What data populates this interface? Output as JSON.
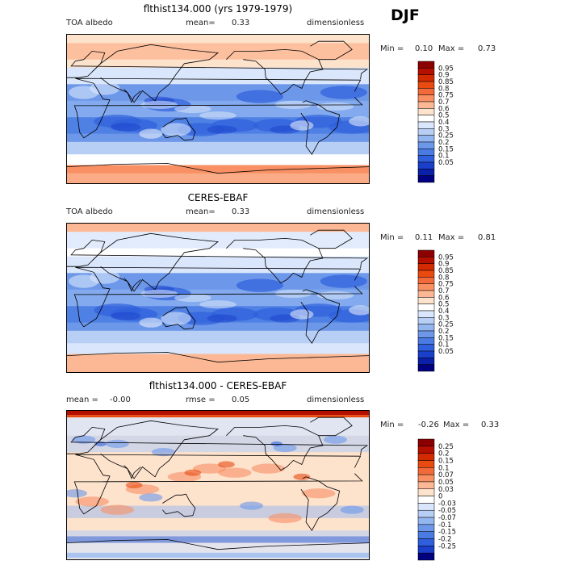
{
  "season": "DJF",
  "panels": [
    {
      "title": "flthist134.000 (yrs 1979-1979)",
      "left_label": "TOA albedo",
      "mid_label": "mean=",
      "mid_value": "0.33",
      "right_label": "dimensionless",
      "min_label": "Min =",
      "min_value": "0.10",
      "max_label": "Max =",
      "max_value": "0.73",
      "levels": [
        "0.95",
        "0.9",
        "0.85",
        "0.8",
        "0.75",
        "0.7",
        "0.6",
        "0.5",
        "0.4",
        "0.3",
        "0.25",
        "0.2",
        "0.15",
        "0.1",
        "0.05"
      ],
      "colors": [
        "#8b0000",
        "#b50f00",
        "#d42a00",
        "#e84a10",
        "#f26a3a",
        "#f99064",
        "#fcb894",
        "#fde2cc",
        "#ffffff",
        "#d9e6fb",
        "#b7cff5",
        "#93b5f0",
        "#6d98ea",
        "#4a7be3",
        "#2f5fdc",
        "#1a3fc9",
        "#0b20a8",
        "#000080"
      ],
      "field": "model"
    },
    {
      "title": "CERES-EBAF",
      "left_label": "TOA albedo",
      "mid_label": "mean=",
      "mid_value": "0.33",
      "right_label": "dimensionless",
      "min_label": "Min =",
      "min_value": "0.11",
      "max_label": "Max =",
      "max_value": "0.81",
      "levels": [
        "0.95",
        "0.9",
        "0.85",
        "0.8",
        "0.75",
        "0.7",
        "0.6",
        "0.5",
        "0.4",
        "0.3",
        "0.25",
        "0.2",
        "0.15",
        "0.1",
        "0.05"
      ],
      "colors": [
        "#8b0000",
        "#b50f00",
        "#d42a00",
        "#e84a10",
        "#f26a3a",
        "#f99064",
        "#fcb894",
        "#fde2cc",
        "#ffffff",
        "#d9e6fb",
        "#b7cff5",
        "#93b5f0",
        "#6d98ea",
        "#4a7be3",
        "#2f5fdc",
        "#1a3fc9",
        "#0b20a8",
        "#000080"
      ],
      "field": "obs"
    },
    {
      "title": "flthist134.000 - CERES-EBAF",
      "left_label": "mean =",
      "left_value": "-0.00",
      "mid_label": "rmse =",
      "mid_value": "0.05",
      "right_label": "dimensionless",
      "min_label": "Min =",
      "min_value": "-0.26",
      "max_label": "Max =",
      "max_value": "0.33",
      "levels": [
        "0.25",
        "0.2",
        "0.15",
        "0.1",
        "0.07",
        "0.05",
        "0.03",
        "0",
        "-0.03",
        "-0.05",
        "-0.07",
        "-0.1",
        "-0.15",
        "-0.2",
        "-0.25"
      ],
      "colors": [
        "#8b0000",
        "#b50f00",
        "#d42a00",
        "#e84a10",
        "#f26a3a",
        "#f99064",
        "#fcb894",
        "#fde2cc",
        "#ffffff",
        "#d9e6fb",
        "#b7cff5",
        "#93b5f0",
        "#6d98ea",
        "#4a7be3",
        "#2f5fdc",
        "#1a3fc9",
        "#000080"
      ],
      "field": "diff"
    }
  ],
  "chart_data": [
    {
      "type": "heatmap",
      "title": "flthist134.000 (yrs 1979-1979)",
      "variable": "TOA albedo",
      "units": "dimensionless",
      "mean": 0.33,
      "min": 0.1,
      "max": 0.73,
      "contour_levels": [
        0.05,
        0.1,
        0.15,
        0.2,
        0.25,
        0.3,
        0.4,
        0.5,
        0.6,
        0.7,
        0.75,
        0.8,
        0.85,
        0.9,
        0.95
      ]
    },
    {
      "type": "heatmap",
      "title": "CERES-EBAF",
      "variable": "TOA albedo",
      "units": "dimensionless",
      "mean": 0.33,
      "min": 0.11,
      "max": 0.81,
      "contour_levels": [
        0.05,
        0.1,
        0.15,
        0.2,
        0.25,
        0.3,
        0.4,
        0.5,
        0.6,
        0.7,
        0.75,
        0.8,
        0.85,
        0.9,
        0.95
      ]
    },
    {
      "type": "heatmap",
      "title": "flthist134.000 - CERES-EBAF",
      "units": "dimensionless",
      "mean": -0.0,
      "rmse": 0.05,
      "min": -0.26,
      "max": 0.33,
      "contour_levels": [
        -0.25,
        -0.2,
        -0.15,
        -0.1,
        -0.07,
        -0.05,
        -0.03,
        0,
        0.03,
        0.05,
        0.07,
        0.1,
        0.15,
        0.2,
        0.25
      ]
    }
  ]
}
